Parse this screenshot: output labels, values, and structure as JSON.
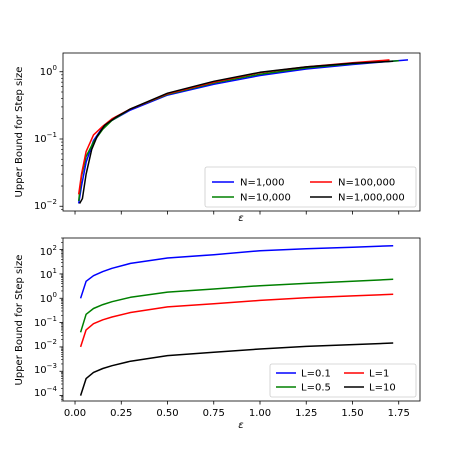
{
  "chart_data": [
    {
      "type": "line",
      "ylabel": "Upper Bound for Step size",
      "xlabel": "ε",
      "xlim": [
        -0.065,
        1.865
      ],
      "ylim": [
        0.0085,
        1.9
      ],
      "yscale": "log",
      "x_tick_labels_shown": false,
      "legend_position": "lower-right",
      "legend_columns": 2,
      "series": [
        {
          "name": "N=1,000",
          "color": "#0000ff",
          "x": [
            0.02,
            0.035,
            0.06,
            0.1,
            0.15,
            0.2,
            0.3,
            0.5,
            0.75,
            1.0,
            1.25,
            1.5,
            1.8
          ],
          "y": [
            0.011,
            0.02,
            0.045,
            0.095,
            0.15,
            0.19,
            0.27,
            0.45,
            0.65,
            0.88,
            1.1,
            1.28,
            1.5
          ]
        },
        {
          "name": "N=10,000",
          "color": "#008000",
          "x": [
            0.02,
            0.035,
            0.06,
            0.1,
            0.15,
            0.2,
            0.3,
            0.5,
            0.75,
            1.0,
            1.25,
            1.5,
            1.75
          ],
          "y": [
            0.012,
            0.028,
            0.055,
            0.09,
            0.14,
            0.19,
            0.28,
            0.46,
            0.68,
            0.92,
            1.14,
            1.32,
            1.46
          ]
        },
        {
          "name": "N=100,000",
          "color": "#ff0000",
          "x": [
            0.02,
            0.035,
            0.06,
            0.1,
            0.15,
            0.2,
            0.3,
            0.5,
            0.75,
            1.0,
            1.25,
            1.5,
            1.7
          ],
          "y": [
            0.015,
            0.03,
            0.065,
            0.115,
            0.155,
            0.2,
            0.28,
            0.47,
            0.7,
            0.97,
            1.18,
            1.36,
            1.5
          ]
        },
        {
          "name": "N=1,000,000",
          "color": "#000000",
          "x": [
            0.025,
            0.04,
            0.06,
            0.09,
            0.12,
            0.16,
            0.22,
            0.3,
            0.5,
            0.75,
            1.0,
            1.25,
            1.5,
            1.72
          ],
          "y": [
            0.011,
            0.013,
            0.03,
            0.07,
            0.11,
            0.16,
            0.21,
            0.28,
            0.48,
            0.72,
            0.98,
            1.18,
            1.34,
            1.43
          ]
        }
      ]
    },
    {
      "type": "line",
      "ylabel": "Upper Bound for Step size",
      "xlabel": "ε",
      "xlim": [
        -0.065,
        1.865
      ],
      "ylim": [
        6e-05,
        300
      ],
      "yscale": "log",
      "x_tick_labels": [
        "0.00",
        "0.25",
        "0.50",
        "0.75",
        "1.00",
        "1.25",
        "1.50",
        "1.75"
      ],
      "legend_position": "lower-right",
      "legend_columns": 2,
      "series": [
        {
          "name": "L=0.1",
          "color": "#0000ff",
          "x": [
            0.03,
            0.06,
            0.1,
            0.15,
            0.2,
            0.3,
            0.5,
            0.75,
            1.0,
            1.25,
            1.5,
            1.72
          ],
          "y": [
            1.0,
            5.0,
            8.5,
            12.5,
            17,
            27,
            45,
            62,
            90,
            108,
            125,
            145
          ]
        },
        {
          "name": "L=0.5",
          "color": "#008000",
          "x": [
            0.03,
            0.06,
            0.1,
            0.15,
            0.2,
            0.3,
            0.5,
            0.75,
            1.0,
            1.25,
            1.5,
            1.72
          ],
          "y": [
            0.04,
            0.22,
            0.38,
            0.55,
            0.72,
            1.1,
            1.8,
            2.4,
            3.3,
            4.1,
            5.0,
            6.0
          ]
        },
        {
          "name": "L=1",
          "color": "#ff0000",
          "x": [
            0.03,
            0.06,
            0.1,
            0.15,
            0.2,
            0.3,
            0.5,
            0.75,
            1.0,
            1.25,
            1.5,
            1.72
          ],
          "y": [
            0.01,
            0.05,
            0.09,
            0.13,
            0.17,
            0.26,
            0.44,
            0.6,
            0.82,
            1.05,
            1.25,
            1.45
          ]
        },
        {
          "name": "L=10",
          "color": "#000000",
          "x": [
            0.03,
            0.06,
            0.1,
            0.15,
            0.2,
            0.3,
            0.5,
            0.75,
            1.0,
            1.25,
            1.5,
            1.72
          ],
          "y": [
            0.0001,
            0.0005,
            0.0009,
            0.0013,
            0.0017,
            0.0026,
            0.0044,
            0.006,
            0.0082,
            0.0105,
            0.0125,
            0.0145
          ]
        }
      ]
    }
  ]
}
